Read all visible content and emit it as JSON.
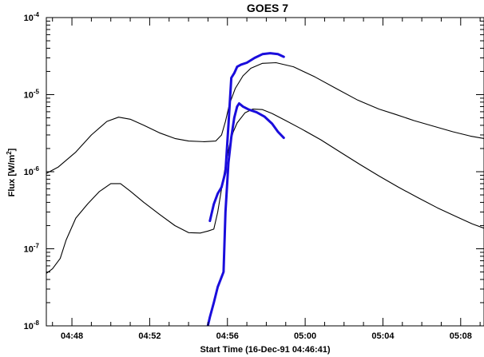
{
  "chart_data": {
    "type": "line",
    "title": "GOES 7",
    "xlabel": "Start Time (16-Dec-91 04:46:41)",
    "ylabel": "Flux [W/m²]",
    "ylabel_parts": {
      "base": "Flux [W/m",
      "sup": "2",
      "close": "]"
    },
    "x_unit": "minutes after 04:00 (16-Dec-91)",
    "xlim": [
      46.683,
      69.2
    ],
    "ylim": [
      1e-08,
      0.0001
    ],
    "yscale": "log",
    "x_ticks": [
      {
        "value": 48,
        "label": "04:48"
      },
      {
        "value": 52,
        "label": "04:52"
      },
      {
        "value": 56,
        "label": "04:56"
      },
      {
        "value": 60,
        "label": "05:00"
      },
      {
        "value": 64,
        "label": "05:04"
      },
      {
        "value": 68,
        "label": "05:08"
      }
    ],
    "y_ticks": [
      {
        "value": 1e-08,
        "base": "10",
        "exp": "-8"
      },
      {
        "value": 1e-07,
        "base": "10",
        "exp": "-7"
      },
      {
        "value": 1e-06,
        "base": "10",
        "exp": "-6"
      },
      {
        "value": 1e-05,
        "base": "10",
        "exp": "-5"
      },
      {
        "value": 0.0001,
        "base": "10",
        "exp": "-4"
      }
    ],
    "grid": false,
    "legend": "none",
    "series": [
      {
        "color": "#000000",
        "x": [
          46.683,
          47.3,
          48.2,
          49.0,
          49.8,
          50.4,
          51.0,
          51.7,
          52.5,
          53.3,
          54.0,
          54.8,
          55.4,
          55.7,
          55.9,
          56.1,
          56.4,
          56.8,
          57.2,
          57.8,
          58.5,
          59.4,
          60.5,
          61.6,
          62.7,
          63.8,
          64.6,
          65.6,
          66.6,
          67.6,
          68.5,
          69.2
        ],
        "y": [
          9.5e-07,
          1.15e-06,
          1.8e-06,
          3e-06,
          4.5e-06,
          5.1e-06,
          4.8e-06,
          4e-06,
          3.2e-06,
          2.7e-06,
          2.5e-06,
          2.45e-06,
          2.5e-06,
          3e-06,
          4.5e-06,
          7.5e-06,
          1.2e-05,
          1.75e-05,
          2.2e-05,
          2.55e-05,
          2.6e-05,
          2.3e-05,
          1.7e-05,
          1.2e-05,
          8.5e-06,
          6.5e-06,
          5.6e-06,
          4.6e-06,
          3.9e-06,
          3.3e-06,
          2.9e-06,
          2.7e-06
        ]
      },
      {
        "color": "#000000",
        "x": [
          46.683,
          47.0,
          47.4,
          47.7,
          48.2,
          48.8,
          49.4,
          50.0,
          50.5,
          51.0,
          51.7,
          52.5,
          53.3,
          54.0,
          54.6,
          55.0,
          55.3,
          55.5,
          55.7,
          55.9,
          56.1,
          56.3,
          56.5,
          56.9,
          57.3,
          57.8,
          58.3,
          59.0,
          59.8,
          60.8,
          61.8,
          62.8,
          63.8,
          64.8,
          65.8,
          66.8,
          67.8,
          68.6,
          69.2
        ],
        "y": [
          4.8e-08,
          5.5e-08,
          7.5e-08,
          1.3e-07,
          2.5e-07,
          3.8e-07,
          5.5e-07,
          7e-07,
          7e-07,
          5.6e-07,
          4e-07,
          2.8e-07,
          2e-07,
          1.62e-07,
          1.6e-07,
          1.7e-07,
          1.8e-07,
          3e-07,
          6e-07,
          1.2e-06,
          2.2e-06,
          3.3e-06,
          4.3e-06,
          5.8e-06,
          6.5e-06,
          6.4e-06,
          5.7e-06,
          4.6e-06,
          3.6e-06,
          2.6e-06,
          1.8e-06,
          1.25e-06,
          8.8e-07,
          6.3e-07,
          4.6e-07,
          3.4e-07,
          2.6e-07,
          2.1e-07,
          1.85e-07
        ]
      },
      {
        "color": "#1a0ddc",
        "x": [
          55.1,
          55.3,
          55.5,
          55.7,
          55.9,
          56.05,
          56.2,
          56.35,
          56.5,
          56.7,
          57.0,
          57.4,
          57.8,
          58.2,
          58.6,
          58.9
        ],
        "y": [
          2.3e-07,
          3.8e-07,
          5.2e-07,
          6.3e-07,
          1e-06,
          4e-06,
          1.65e-05,
          1.9e-05,
          2.3e-05,
          2.45e-05,
          2.6e-05,
          3e-05,
          3.35e-05,
          3.45e-05,
          3.35e-05,
          3.1e-05
        ]
      },
      {
        "color": "#1a0ddc",
        "x": [
          54.95,
          55.1,
          55.3,
          55.5,
          55.7,
          55.8,
          55.9,
          56.05,
          56.2,
          56.35,
          56.5,
          56.6,
          56.8,
          57.1,
          57.5,
          57.9,
          58.3,
          58.6,
          58.9
        ],
        "y": [
          9e-09,
          1.3e-08,
          2e-08,
          3.2e-08,
          4.3e-08,
          5e-08,
          3e-07,
          1.3e-06,
          2.8e-06,
          5e-06,
          7e-06,
          7.7e-06,
          7e-06,
          6.4e-06,
          5.9e-06,
          5.2e-06,
          4.2e-06,
          3.3e-06,
          2.75e-06
        ]
      }
    ]
  }
}
